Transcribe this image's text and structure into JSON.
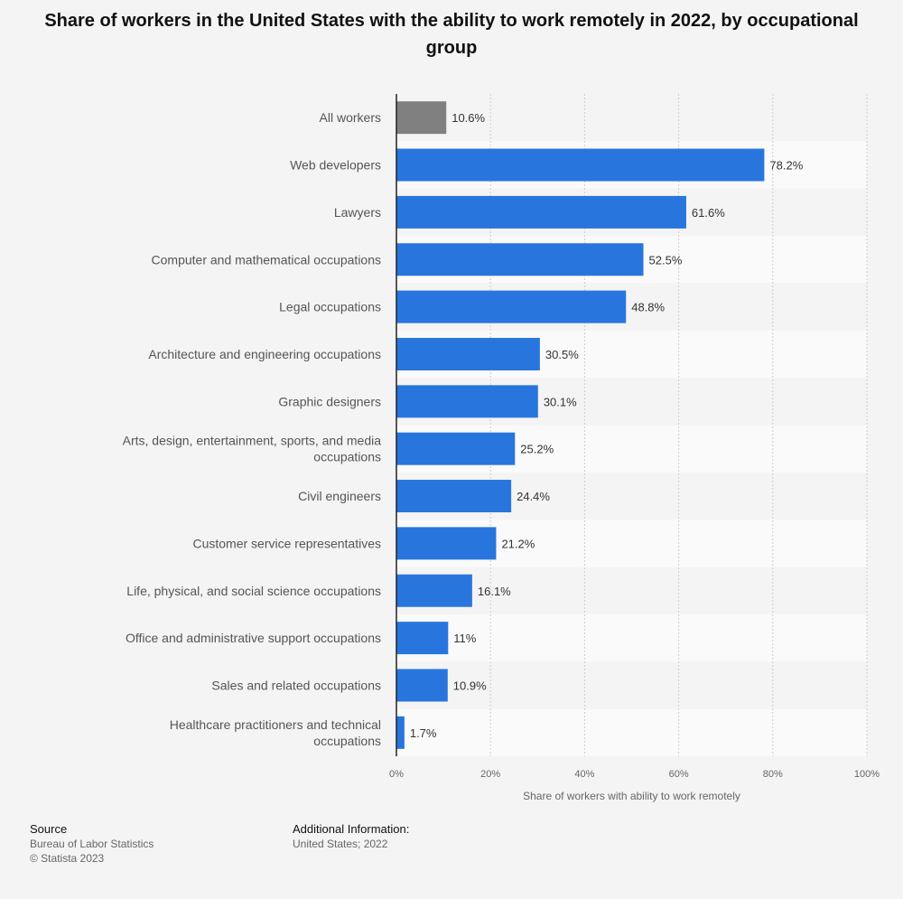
{
  "title": "Share of workers in the United States with the ability to work remotely in 2022, by occupational group",
  "colors": {
    "highlight": "#808080",
    "bar": "#2876dd",
    "axis": "#222222",
    "grid": "#cccccc",
    "band": "#fafafa"
  },
  "chart_data": {
    "type": "bar",
    "orientation": "horizontal",
    "categories": [
      "All workers",
      "Web developers",
      "Lawyers",
      "Computer and mathematical occupations",
      "Legal occupations",
      "Architecture and engineering occupations",
      "Graphic designers",
      "Arts, design, entertainment, sports, and media occupations",
      "Civil engineers",
      "Customer service representatives",
      "Life, physical, and social science occupations",
      "Office and administrative support occupations",
      "Sales and related occupations",
      "Healthcare practitioners and technical occupations"
    ],
    "category_label_lines": [
      [
        "All workers"
      ],
      [
        "Web developers"
      ],
      [
        "Lawyers"
      ],
      [
        "Computer and mathematical occupations"
      ],
      [
        "Legal occupations"
      ],
      [
        "Architecture and engineering occupations"
      ],
      [
        "Graphic designers"
      ],
      [
        "Arts, design, entertainment, sports, and media",
        "occupations"
      ],
      [
        "Civil engineers"
      ],
      [
        "Customer service representatives"
      ],
      [
        "Life, physical, and social science occupations"
      ],
      [
        "Office and administrative support occupations"
      ],
      [
        "Sales and related occupations"
      ],
      [
        "Healthcare practitioners and technical",
        "occupations"
      ]
    ],
    "values": [
      10.6,
      78.2,
      61.6,
      52.5,
      48.8,
      30.5,
      30.1,
      25.2,
      24.4,
      21.2,
      16.1,
      11,
      10.9,
      1.7
    ],
    "data_labels": [
      "10.6%",
      "78.2%",
      "61.6%",
      "52.5%",
      "48.8%",
      "30.5%",
      "30.1%",
      "25.2%",
      "24.4%",
      "21.2%",
      "16.1%",
      "11%",
      "10.9%",
      "1.7%"
    ],
    "highlight_index": 0,
    "xlim": [
      0,
      100
    ],
    "xticks": [
      0,
      20,
      40,
      60,
      80,
      100
    ],
    "xtick_labels": [
      "0%",
      "20%",
      "40%",
      "60%",
      "80%",
      "100%"
    ],
    "xlabel": "Share of workers with ability to work remotely",
    "ylabel": "",
    "grid": true,
    "legend": "none"
  },
  "footer": {
    "source_heading": "Source",
    "source_lines": [
      "Bureau of Labor Statistics",
      "© Statista 2023"
    ],
    "info_heading": "Additional Information:",
    "info_lines": [
      "United States; 2022"
    ]
  }
}
